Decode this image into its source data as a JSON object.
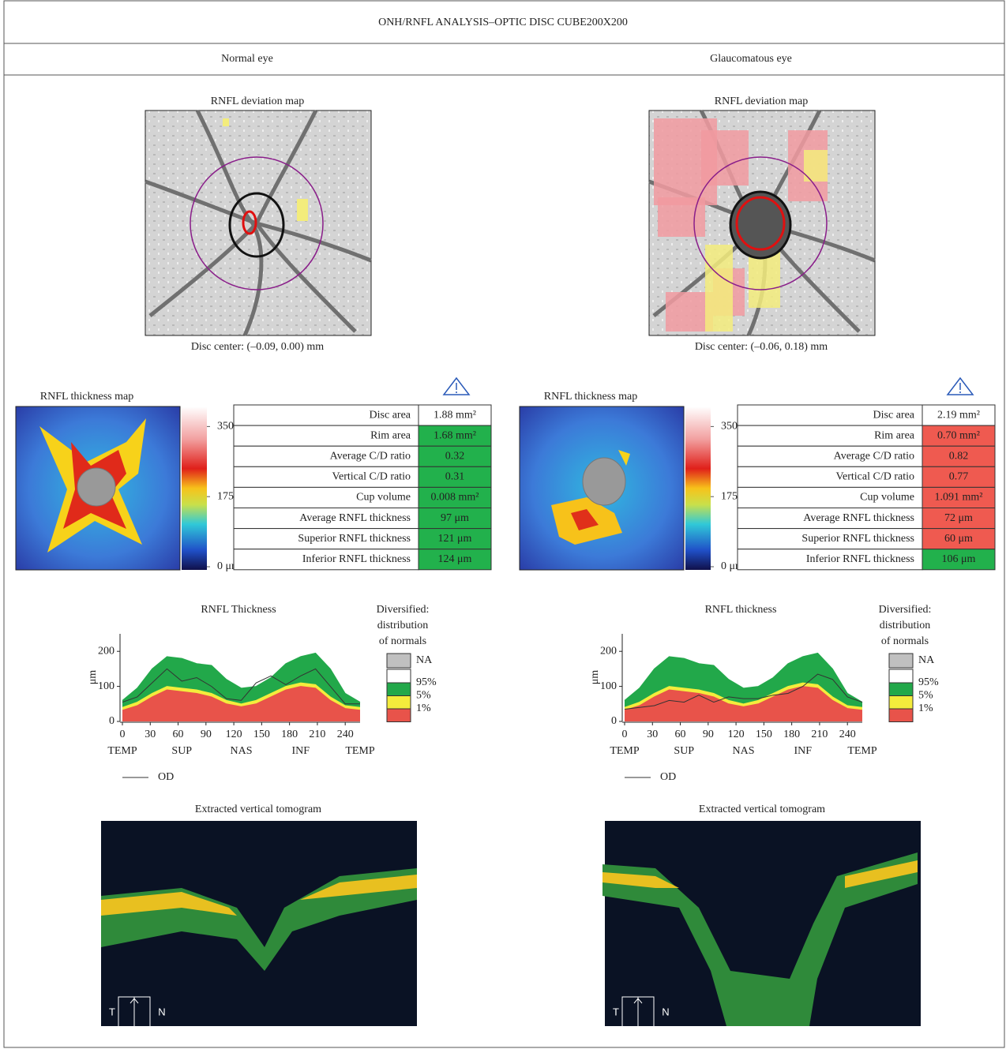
{
  "title": "ONH/RNFL ANALYSIS–OPTIC DISC CUBE200X200",
  "eyes": [
    {
      "heading": "Normal eye",
      "deviation_map": {
        "title": "RNFL deviation map",
        "caption": "Disc center: (–0.09, 0.00) mm"
      },
      "thickness_map": {
        "title": "RNFL thickness map",
        "colorbar_lim": [
          0,
          400
        ],
        "colorbar_ticks": [
          350,
          175,
          {
            "value": 0,
            "label": "0 μm"
          }
        ]
      },
      "table": [
        {
          "label": "Disc area",
          "value": "1.88 mm²",
          "color": "#ffffff"
        },
        {
          "label": "Rim area",
          "value": "1.68 mm²",
          "color": "#22b14c"
        },
        {
          "label": "Average C/D ratio",
          "value": "0.32",
          "color": "#22b14c"
        },
        {
          "label": "Vertical C/D ratio",
          "value": "0.31",
          "color": "#22b14c"
        },
        {
          "label": "Cup volume",
          "value": "0.008 mm²",
          "color": "#22b14c"
        },
        {
          "label": "Average RNFL thickness",
          "value": "97 μm",
          "color": "#22b14c"
        },
        {
          "label": "Superior RNFL thickness",
          "value": "121 μm",
          "color": "#22b14c"
        },
        {
          "label": "Inferior RNFL thickness",
          "value": "124 μm",
          "color": "#22b14c"
        }
      ],
      "tomogram": {
        "title": "Extracted vertical tomogram",
        "orientation": [
          "T",
          "N"
        ]
      }
    },
    {
      "heading": "Glaucomatous eye",
      "deviation_map": {
        "title": "RNFL deviation map",
        "caption": "Disc center: (–0.06, 0.18) mm"
      },
      "thickness_map": {
        "title": "RNFL thickness map",
        "colorbar_lim": [
          0,
          400
        ],
        "colorbar_ticks": [
          350,
          175,
          {
            "value": 0,
            "label": "0 μm"
          }
        ]
      },
      "table": [
        {
          "label": "Disc area",
          "value": "2.19 mm²",
          "color": "#ffffff"
        },
        {
          "label": "Rim area",
          "value": "0.70 mm²",
          "color": "#ef5a50"
        },
        {
          "label": "Average C/D ratio",
          "value": "0.82",
          "color": "#ef5a50"
        },
        {
          "label": "Vertical C/D ratio",
          "value": "0.77",
          "color": "#ef5a50"
        },
        {
          "label": "Cup volume",
          "value": "1.091 mm²",
          "color": "#ef5a50"
        },
        {
          "label": "Average RNFL thickness",
          "value": "72 μm",
          "color": "#ef5a50"
        },
        {
          "label": "Superior RNFL thickness",
          "value": "60 μm",
          "color": "#ef5a50"
        },
        {
          "label": "Inferior RNFL thickness",
          "value": "106 μm",
          "color": "#22b14c"
        }
      ],
      "tomogram": {
        "title": "Extracted vertical tomogram",
        "orientation": [
          "T",
          "N"
        ]
      }
    }
  ],
  "chart_data": [
    {
      "type": "line",
      "title": "RNFL Thickness",
      "y_label": "μm",
      "x": [
        0,
        16,
        32,
        48,
        64,
        80,
        96,
        112,
        128,
        144,
        160,
        176,
        192,
        208,
        224,
        240,
        256
      ],
      "xlim": [
        0,
        256
      ],
      "xticks": [
        0,
        30,
        60,
        90,
        120,
        150,
        180,
        210,
        240
      ],
      "region_ticks": [
        {
          "value": 0,
          "label": "TEMP"
        },
        {
          "value": 64,
          "label": "SUP"
        },
        {
          "value": 128,
          "label": "NAS"
        },
        {
          "value": 192,
          "label": "INF"
        },
        {
          "value": 256,
          "label": "TEMP"
        }
      ],
      "ylim": [
        0,
        250
      ],
      "yticks": [
        0,
        100,
        200
      ],
      "legend_title": [
        "Diversified:",
        "distribution",
        "of normals"
      ],
      "na": {
        "name": "NA",
        "color": "#c0c0c0"
      },
      "bands": [
        {
          "name": "95%",
          "color": "#22a84a",
          "values": [
            60,
            95,
            150,
            185,
            180,
            165,
            160,
            120,
            95,
            100,
            125,
            165,
            185,
            195,
            150,
            80,
            55
          ]
        },
        {
          "name": "5%",
          "color": "#f4ec3c",
          "values": [
            40,
            55,
            80,
            100,
            95,
            90,
            80,
            60,
            50,
            60,
            80,
            100,
            110,
            105,
            70,
            45,
            40
          ]
        },
        {
          "name": "1%",
          "color": "#e8534a",
          "values": [
            32,
            45,
            70,
            90,
            85,
            80,
            70,
            50,
            42,
            50,
            70,
            90,
            100,
            95,
            60,
            37,
            32
          ]
        }
      ],
      "series": [
        {
          "name": "OD",
          "color": "#333333",
          "values": [
            55,
            70,
            110,
            150,
            115,
            125,
            100,
            65,
            60,
            110,
            130,
            105,
            130,
            150,
            100,
            50,
            50
          ]
        }
      ]
    },
    {
      "type": "line",
      "title": "RNFL thickness",
      "y_label": "μm",
      "x": [
        0,
        16,
        32,
        48,
        64,
        80,
        96,
        112,
        128,
        144,
        160,
        176,
        192,
        208,
        224,
        240,
        256
      ],
      "xlim": [
        0,
        256
      ],
      "xticks": [
        0,
        30,
        60,
        90,
        120,
        150,
        180,
        210,
        240
      ],
      "region_ticks": [
        {
          "value": 0,
          "label": "TEMP"
        },
        {
          "value": 64,
          "label": "SUP"
        },
        {
          "value": 128,
          "label": "NAS"
        },
        {
          "value": 192,
          "label": "INF"
        },
        {
          "value": 256,
          "label": "TEMP"
        }
      ],
      "ylim": [
        0,
        250
      ],
      "yticks": [
        0,
        100,
        200
      ],
      "legend_title": [
        "Diversified:",
        "distribution",
        "of normals"
      ],
      "na": {
        "name": "NA",
        "color": "#c0c0c0"
      },
      "bands": [
        {
          "name": "95%",
          "color": "#22a84a",
          "values": [
            60,
            95,
            150,
            185,
            180,
            165,
            160,
            120,
            95,
            100,
            125,
            165,
            185,
            195,
            150,
            80,
            55
          ]
        },
        {
          "name": "5%",
          "color": "#f4ec3c",
          "values": [
            40,
            55,
            80,
            100,
            95,
            90,
            80,
            60,
            50,
            60,
            80,
            100,
            110,
            105,
            70,
            45,
            40
          ]
        },
        {
          "name": "1%",
          "color": "#e8534a",
          "values": [
            32,
            45,
            70,
            90,
            85,
            80,
            70,
            50,
            42,
            50,
            70,
            90,
            100,
            95,
            60,
            37,
            32
          ]
        }
      ],
      "series": [
        {
          "name": "OD",
          "color": "#333333",
          "values": [
            35,
            40,
            45,
            60,
            55,
            75,
            55,
            70,
            65,
            65,
            75,
            80,
            100,
            135,
            120,
            70,
            55
          ]
        }
      ]
    }
  ]
}
